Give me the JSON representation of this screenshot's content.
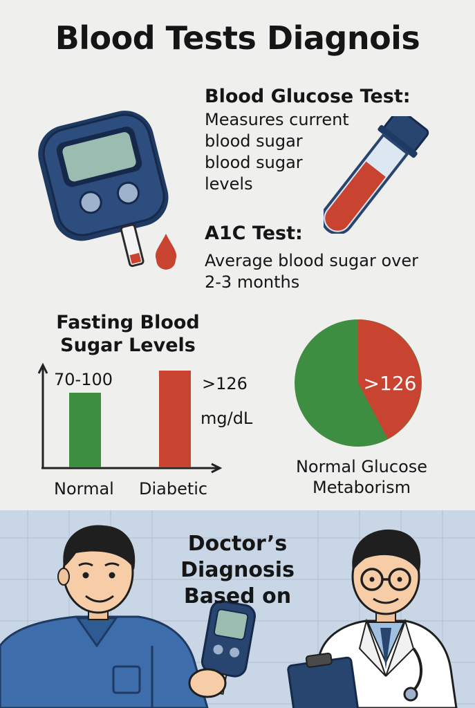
{
  "title": "Blood Tests Diagnois",
  "glucose_test": {
    "title": "Blood Glucose Test:",
    "lines": [
      "Measures current",
      "blood sugar",
      "blood sugar",
      "levels"
    ]
  },
  "a1c_test": {
    "title": "A1C Test:",
    "lines": [
      "Average blood sugar over",
      "2-3 months"
    ]
  },
  "fasting": {
    "title_lines": [
      "Fasting Blood",
      "Sugar Levels"
    ]
  },
  "chart_data": [
    {
      "type": "bar",
      "title": "Fasting Blood Sugar Levels",
      "categories": [
        "Normal",
        "Diabetic"
      ],
      "value_labels": [
        "70-100",
        ">126"
      ],
      "unit": "mg/dL",
      "colors": [
        "#3e8e42",
        "#c84431"
      ]
    },
    {
      "type": "pie",
      "title": "Normal Glucose Metaborism",
      "slice_label": ">126",
      "colors": [
        "#3e8e42",
        "#c84431"
      ]
    }
  ],
  "pie_caption_lines": [
    "Normal Glucose",
    "Metaborism"
  ],
  "doctor": {
    "title_lines": [
      "Doctor’s",
      "Diagnosis",
      "Based on"
    ]
  },
  "colors": {
    "navy": "#27456f",
    "green": "#3e8e42",
    "red": "#c84431",
    "background": "#efefee",
    "panel_blue": "#c9d6e6"
  }
}
